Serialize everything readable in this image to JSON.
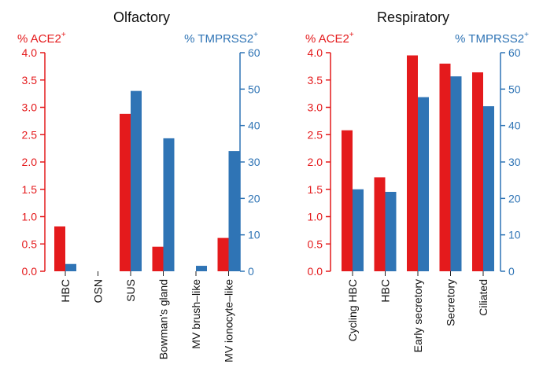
{
  "colors": {
    "ace2": "#e41a1c",
    "tmprss2": "#2f74b5",
    "axis": "#222222"
  },
  "chart_data": [
    {
      "type": "bar",
      "title": "Olfactory",
      "categories": [
        "HBC",
        "OSN",
        "SUS",
        "Bowman's gland",
        "MV brush–like",
        "MV ionocyte–like"
      ],
      "series": [
        {
          "name": "% ACE2",
          "axis": "left",
          "values": [
            0.82,
            0.0,
            2.88,
            0.45,
            0.0,
            0.61
          ]
        },
        {
          "name": "% TMPRSS2",
          "axis": "right",
          "values": [
            2.0,
            0.0,
            49.5,
            36.5,
            1.5,
            33.0
          ]
        }
      ],
      "left_axis": {
        "label": "% ACE2",
        "superscript": "+",
        "range": [
          0,
          4.0
        ],
        "ticks": [
          "0.0",
          "0.5",
          "1.0",
          "1.5",
          "2.0",
          "2.5",
          "3.0",
          "3.5",
          "4.0"
        ]
      },
      "right_axis": {
        "label": "% TMPRSS2",
        "superscript": "+",
        "range": [
          0,
          60
        ],
        "ticks": [
          "0",
          "10",
          "20",
          "30",
          "40",
          "50",
          "60"
        ]
      }
    },
    {
      "type": "bar",
      "title": "Respiratory",
      "categories": [
        "Cycling HBC",
        "HBC",
        "Early secretory",
        "Secretory",
        "Ciliated"
      ],
      "series": [
        {
          "name": "% ACE2",
          "axis": "left",
          "values": [
            2.58,
            1.72,
            3.95,
            3.8,
            3.64
          ]
        },
        {
          "name": "% TMPRSS2",
          "axis": "right",
          "values": [
            22.5,
            21.8,
            47.8,
            53.5,
            45.3
          ]
        }
      ],
      "left_axis": {
        "label": "% ACE2",
        "superscript": "+",
        "range": [
          0,
          4.0
        ],
        "ticks": [
          "0.0",
          "0.5",
          "1.0",
          "1.5",
          "2.0",
          "2.5",
          "3.0",
          "3.5",
          "4.0"
        ]
      },
      "right_axis": {
        "label": "% TMPRSS2",
        "superscript": "+",
        "range": [
          0,
          60
        ],
        "ticks": [
          "0",
          "10",
          "20",
          "30",
          "40",
          "50",
          "60"
        ]
      }
    }
  ]
}
